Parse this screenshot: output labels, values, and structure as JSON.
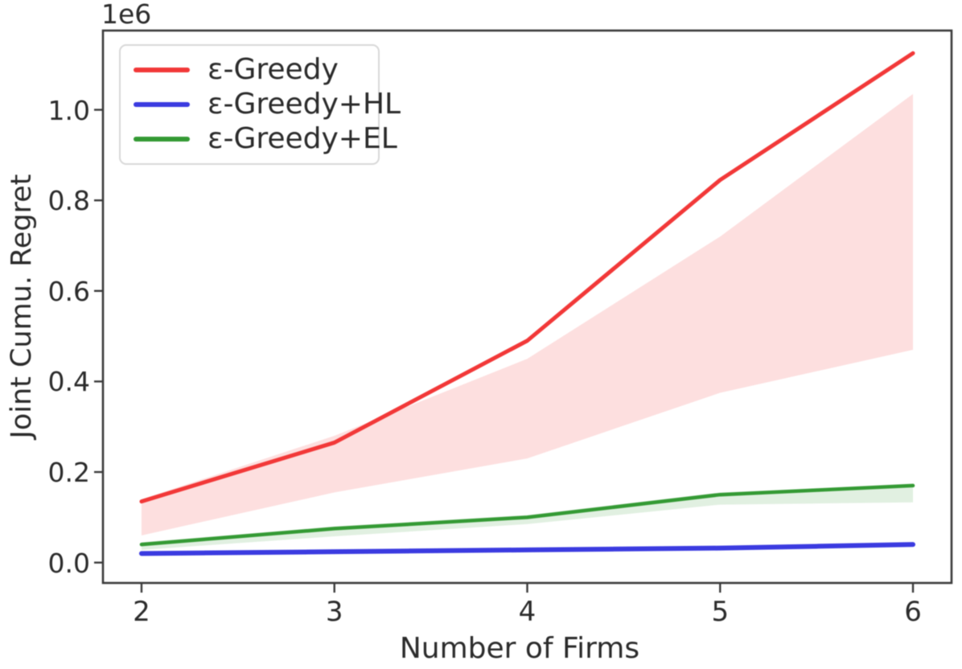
{
  "chart_data": {
    "type": "line",
    "title": "",
    "xlabel": "Number of Firms",
    "ylabel": "Joint Cumu. Regret",
    "y_offset_label": "1e6",
    "y_unit_multiplier": 1000000,
    "x": [
      2,
      3,
      4,
      5,
      6
    ],
    "xlim": [
      1.8,
      6.2
    ],
    "ylim": [
      -0.045,
      1.175
    ],
    "xtick_labels": [
      "2",
      "3",
      "4",
      "5",
      "6"
    ],
    "xtick_values": [
      2,
      3,
      4,
      5,
      6
    ],
    "ytick_labels": [
      "0.0",
      "0.2",
      "0.4",
      "0.6",
      "0.8",
      "1.0"
    ],
    "ytick_values": [
      0.0,
      0.2,
      0.4,
      0.6,
      0.8,
      1.0
    ],
    "grid": false,
    "legend_position": "upper-left",
    "series": [
      {
        "name": "ε-Greedy",
        "color": "#f23838",
        "line_width": 5,
        "values": [
          0.135,
          0.265,
          0.49,
          0.845,
          1.125
        ],
        "band_low": [
          0.06,
          0.155,
          0.23,
          0.375,
          0.47
        ],
        "band_high": [
          0.14,
          0.28,
          0.45,
          0.72,
          1.035
        ],
        "band_color": "rgba(242,56,56,0.16)"
      },
      {
        "name": "ε-Greedy+HL",
        "color": "#3b3be0",
        "line_width": 6,
        "values": [
          0.02,
          0.024,
          0.028,
          0.032,
          0.04
        ],
        "band_low": null,
        "band_high": null,
        "band_color": null
      },
      {
        "name": "ε-Greedy+EL",
        "color": "#349a34",
        "line_width": 4.5,
        "values": [
          0.04,
          0.075,
          0.1,
          0.15,
          0.17
        ],
        "band_low": [
          0.028,
          0.058,
          0.085,
          0.128,
          0.133
        ],
        "band_high": [
          0.045,
          0.08,
          0.105,
          0.155,
          0.172
        ],
        "band_color": "rgba(52,154,52,0.15)"
      }
    ]
  }
}
